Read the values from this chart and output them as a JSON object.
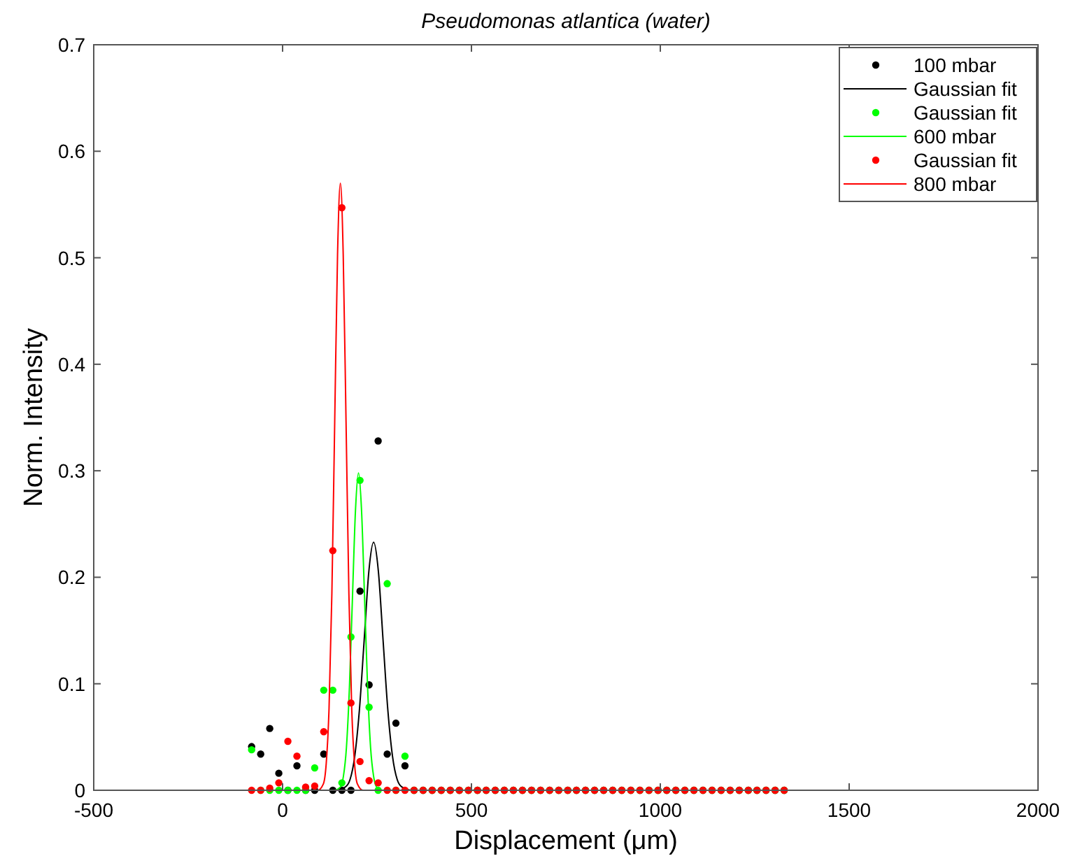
{
  "chart_data": {
    "type": "scatter",
    "title": "Pseudomonas atlantica (water)",
    "xlabel": "Displacement (μm)",
    "ylabel": "Norm. Intensity",
    "xlim": [
      -500,
      2000
    ],
    "xticks": [
      -500,
      0,
      500,
      1000,
      1500,
      2000
    ],
    "ylim": [
      0,
      0.7
    ],
    "yticks": [
      0,
      0.1,
      0.2,
      0.3,
      0.4,
      0.5,
      0.6,
      0.7
    ],
    "grid": false,
    "legend": "top right",
    "series": [
      {
        "name": "100 mbar",
        "marker": "circle",
        "color": "#000000",
        "x": [
          -82,
          -58,
          -34,
          -10,
          14,
          38,
          61,
          85,
          109,
          133,
          157,
          181,
          205,
          229,
          253,
          277,
          300,
          324,
          348,
          372,
          396,
          420,
          444,
          468,
          492,
          516,
          539,
          563,
          587,
          611,
          635,
          659,
          683,
          707,
          731,
          755,
          778,
          802,
          826,
          850,
          874,
          898,
          922,
          946,
          970,
          994,
          1017,
          1041,
          1065,
          1089,
          1113,
          1137,
          1161,
          1185,
          1209,
          1233,
          1256,
          1280,
          1304,
          1328
        ],
        "values": [
          0.041,
          0.034,
          0.058,
          0.016,
          0,
          0.023,
          0,
          0,
          0.034,
          0,
          0,
          0,
          0.187,
          0.099,
          0.328,
          0.034,
          0.063,
          0.023,
          0,
          0,
          0,
          0,
          0,
          0,
          0,
          0,
          0,
          0,
          0,
          0,
          0,
          0,
          0,
          0,
          0,
          0,
          0,
          0,
          0,
          0,
          0,
          0,
          0,
          0,
          0,
          0,
          0,
          0,
          0,
          0,
          0,
          0,
          0,
          0,
          0,
          0,
          0,
          0,
          0,
          0
        ]
      },
      {
        "name": "Gaussian fit",
        "type": "line",
        "marker": "none",
        "color": "#000000",
        "x": [
          -82,
          141,
          166,
          178.5,
          191,
          203.5,
          216,
          228.5,
          241,
          253.5,
          266,
          278.5,
          291,
          303.5,
          316,
          341,
          1328
        ],
        "values": [
          0,
          0,
          0.003,
          0.01,
          0.032,
          0.076,
          0.141,
          0.206,
          0.233,
          0.206,
          0.141,
          0.076,
          0.032,
          0.01,
          0.003,
          0,
          0
        ]
      },
      {
        "name": "Gaussian fit",
        "marker": "circle",
        "color": "#00ff00",
        "x": [
          -82,
          -58,
          -34,
          -10,
          14,
          38,
          61,
          85,
          109,
          133,
          157,
          181,
          205,
          229,
          253,
          277,
          300,
          324,
          348,
          372,
          396,
          420,
          444,
          468,
          492,
          516,
          539,
          563,
          587,
          611,
          635,
          659,
          683,
          707,
          731,
          755,
          778,
          802,
          826,
          850,
          874,
          898,
          922,
          946,
          970,
          994,
          1017,
          1041,
          1065,
          1089,
          1113,
          1137,
          1161,
          1185,
          1209,
          1233,
          1256,
          1280,
          1304,
          1328
        ],
        "values": [
          0.038,
          0,
          0,
          0,
          0,
          0,
          0,
          0.021,
          0.094,
          0.094,
          0.007,
          0.144,
          0.291,
          0.078,
          0,
          0.194,
          0,
          0.032,
          0,
          0,
          0,
          0,
          0,
          0,
          0,
          0,
          0,
          0,
          0,
          0,
          0,
          0,
          0,
          0,
          0,
          0,
          0,
          0,
          0,
          0,
          0,
          0,
          0,
          0,
          0,
          0,
          0,
          0,
          0,
          0,
          0,
          0,
          0,
          0,
          0,
          0,
          0,
          0,
          0,
          0
        ]
      },
      {
        "name": "600 mbar",
        "type": "line",
        "marker": "none",
        "color": "#00ff00",
        "x": [
          -82,
          137,
          153,
          161,
          169,
          177,
          185,
          193,
          201,
          209,
          217,
          225,
          233,
          241,
          249,
          265,
          1328
        ],
        "values": [
          0,
          0,
          0.003,
          0.013,
          0.04,
          0.097,
          0.181,
          0.263,
          0.298,
          0.263,
          0.181,
          0.097,
          0.04,
          0.013,
          0.003,
          0,
          0
        ]
      },
      {
        "name": "Gaussian fit",
        "marker": "circle",
        "color": "#ff0000",
        "x": [
          -82,
          -58,
          -34,
          -10,
          14,
          38,
          61,
          85,
          109,
          133,
          157,
          181,
          205,
          229,
          253,
          277,
          300,
          324,
          348,
          372,
          396,
          420,
          444,
          468,
          492,
          516,
          539,
          563,
          587,
          611,
          635,
          659,
          683,
          707,
          731,
          755,
          778,
          802,
          826,
          850,
          874,
          898,
          922,
          946,
          970,
          994,
          1017,
          1041,
          1065,
          1089,
          1113,
          1137,
          1161,
          1185,
          1209,
          1233,
          1256,
          1280,
          1304,
          1328
        ],
        "values": [
          0,
          0,
          0.002,
          0.007,
          0.046,
          0.032,
          0.003,
          0.004,
          0.055,
          0.225,
          0.547,
          0.082,
          0.027,
          0.009,
          0.007,
          0,
          0,
          0,
          0,
          0,
          0,
          0,
          0,
          0,
          0,
          0,
          0,
          0,
          0,
          0,
          0,
          0,
          0,
          0,
          0,
          0,
          0,
          0,
          0,
          0,
          0,
          0,
          0,
          0,
          0,
          0,
          0,
          0,
          0,
          0,
          0,
          0,
          0,
          0,
          0,
          0,
          0,
          0,
          0,
          0
        ]
      },
      {
        "name": "800 mbar",
        "type": "line",
        "marker": "none",
        "color": "#ff0000",
        "x": [
          -82,
          93,
          108,
          115.5,
          123,
          130.5,
          138,
          145.5,
          153,
          160.5,
          168,
          175.5,
          183,
          190.5,
          198,
          213,
          1328
        ],
        "values": [
          0,
          0,
          0.006,
          0.025,
          0.077,
          0.185,
          0.346,
          0.503,
          0.57,
          0.503,
          0.346,
          0.185,
          0.077,
          0.025,
          0.006,
          0,
          0
        ]
      }
    ]
  }
}
